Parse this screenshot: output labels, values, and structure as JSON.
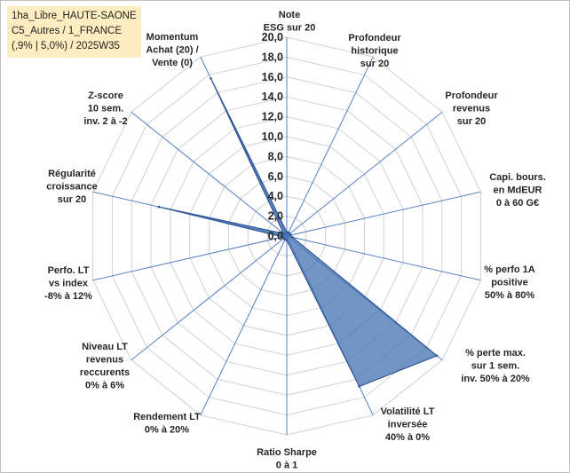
{
  "chart_data": {
    "type": "radar",
    "title_lines": [
      "1ha_Libre_HAUTE-SAONE",
      "C5_Autres / 1_FRANCE",
      "(,9% | 5,0%) / 2025W35"
    ],
    "r_range": [
      0,
      20
    ],
    "r_ticks": [
      "0,0",
      "2,0",
      "4,0",
      "6,0",
      "8,0",
      "10,0",
      "12,0",
      "14,0",
      "16,0",
      "18,0",
      "20,0"
    ],
    "grid": true,
    "legend": "none",
    "fill_color": "#4a77b4",
    "axes": [
      {
        "label_lines": [
          "Note",
          "ESG sur 20"
        ],
        "value": 0.4
      },
      {
        "label_lines": [
          "Profondeur",
          "historique",
          "sur 20"
        ],
        "value": 0.4
      },
      {
        "label_lines": [
          "Profondeur",
          "revenus",
          "sur 20"
        ],
        "value": 0.4
      },
      {
        "label_lines": [
          "Capi. bours.",
          "en MdEUR",
          "0 à 60 G€"
        ],
        "value": 0.4
      },
      {
        "label_lines": [
          "% perfo 1A",
          "positive",
          "50% à 80%"
        ],
        "value": 0.6
      },
      {
        "label_lines": [
          "% perte max.",
          "sur 1 sem.",
          "inv. 50% à 20%"
        ],
        "value": 19.3
      },
      {
        "label_lines": [
          "Volatilité LT",
          "inversée",
          "40% à 0%"
        ],
        "value": 16.8
      },
      {
        "label_lines": [
          "Ratio Sharpe",
          "0 à 1"
        ],
        "value": 0.4
      },
      {
        "label_lines": [
          "Rendement LT",
          "0% à 20%"
        ],
        "value": 0.4
      },
      {
        "label_lines": [
          "Niveau LT",
          "revenus",
          "reccurents",
          "0% à 6%"
        ],
        "value": 0.4
      },
      {
        "label_lines": [
          "Perfo. LT",
          "vs index",
          "-8% à 12%"
        ],
        "value": 0.4
      },
      {
        "label_lines": [
          "Régularité",
          "croissance",
          "sur 20"
        ],
        "value": 13.2
      },
      {
        "label_lines": [
          "Z-score",
          "10 sem.",
          "inv. 2 à -2"
        ],
        "value": 0.4
      },
      {
        "label_lines": [
          "Momentum",
          "Achat (20) /",
          "Vente (0)"
        ],
        "value": 17.6
      }
    ]
  }
}
